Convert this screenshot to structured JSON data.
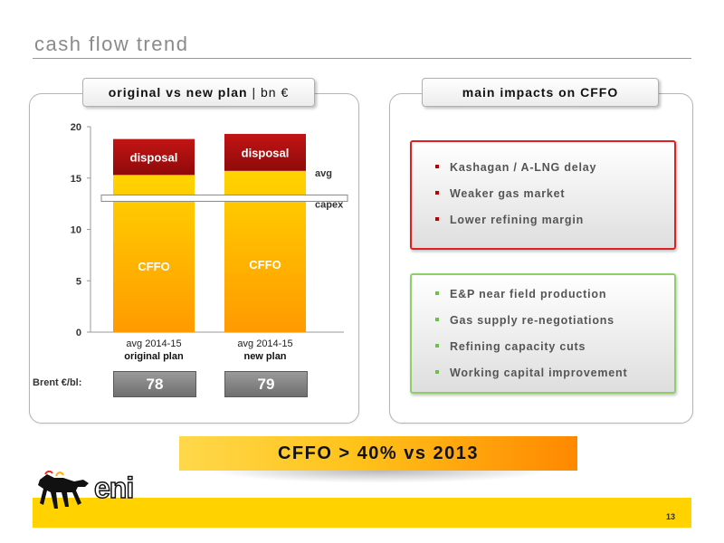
{
  "page": {
    "title": "cash flow trend",
    "page_number": "13"
  },
  "left_panel": {
    "header_bold": "original vs new plan",
    "header_sep": " | ",
    "header_unit": "bn €",
    "brent_label": "Brent €/bl:",
    "brent_values": [
      "78",
      "79"
    ],
    "avg_label_1": "avg",
    "avg_label_2": "capex"
  },
  "chart_data": {
    "type": "bar",
    "stacked": true,
    "categories": [
      {
        "line1": "avg 2014-15",
        "line2": "original plan"
      },
      {
        "line1": "avg 2014-15",
        "line2": "new plan"
      }
    ],
    "series": [
      {
        "name": "CFFO",
        "values": [
          15.3,
          15.7
        ],
        "color": "#ffc800"
      },
      {
        "name": "disposal",
        "values": [
          3.5,
          3.6
        ],
        "color": "#b01010"
      }
    ],
    "avg_capex_line": 13,
    "yticks": [
      0,
      5,
      10,
      15,
      20
    ],
    "ylim": [
      0,
      20
    ]
  },
  "right_panel": {
    "header": "main impacts on CFFO",
    "negative_impacts": [
      "Kashagan /  A-LNG delay",
      "Weaker gas market",
      "Lower refining margin"
    ],
    "positive_impacts": [
      "E&P near field production",
      "Gas supply re-negotiations",
      "Refining capacity cuts",
      "Working capital improvement"
    ]
  },
  "banner": {
    "text": "CFFO > 40%  vs 2013"
  },
  "logo": {
    "wordmark": "eni",
    "icon": "six-legged-dog-icon"
  },
  "colors": {
    "accent_yellow": "#ffd200",
    "negative_red": "#e02020",
    "positive_green": "#8ecf6a",
    "disposal_red": "#b01010",
    "cffo_yellow": "#ffc800"
  }
}
